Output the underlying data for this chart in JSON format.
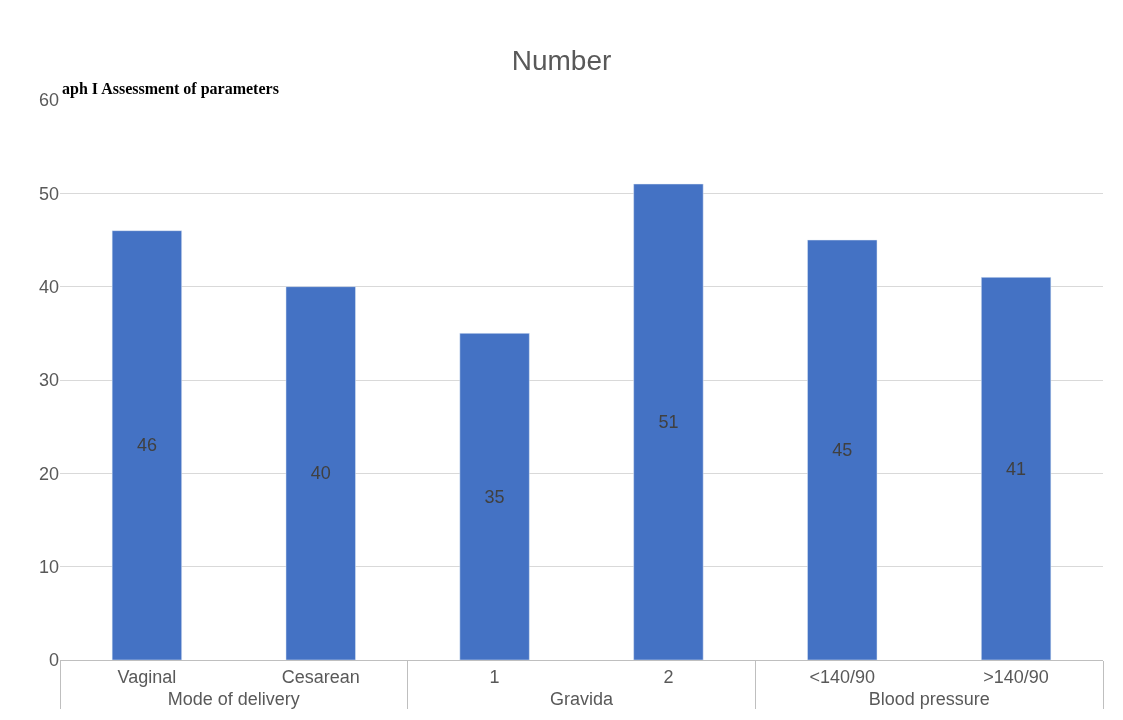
{
  "chart_data": {
    "type": "bar",
    "title": "Number",
    "categories": [
      "Vaginal",
      "Cesarean",
      "1",
      "2",
      "<140/90",
      ">140/90"
    ],
    "values": [
      46,
      40,
      35,
      51,
      45,
      41
    ],
    "color": "#4472c4",
    "ylim": [
      0,
      60
    ],
    "yticks": [
      0,
      10,
      20,
      30,
      40,
      50,
      60
    ],
    "grid": "y",
    "legend": false,
    "data_labels": true,
    "annotations": [
      "aph I Assessment of parameters",
      "Mode of delivery",
      "Gravida",
      "Blood pressure"
    ]
  }
}
